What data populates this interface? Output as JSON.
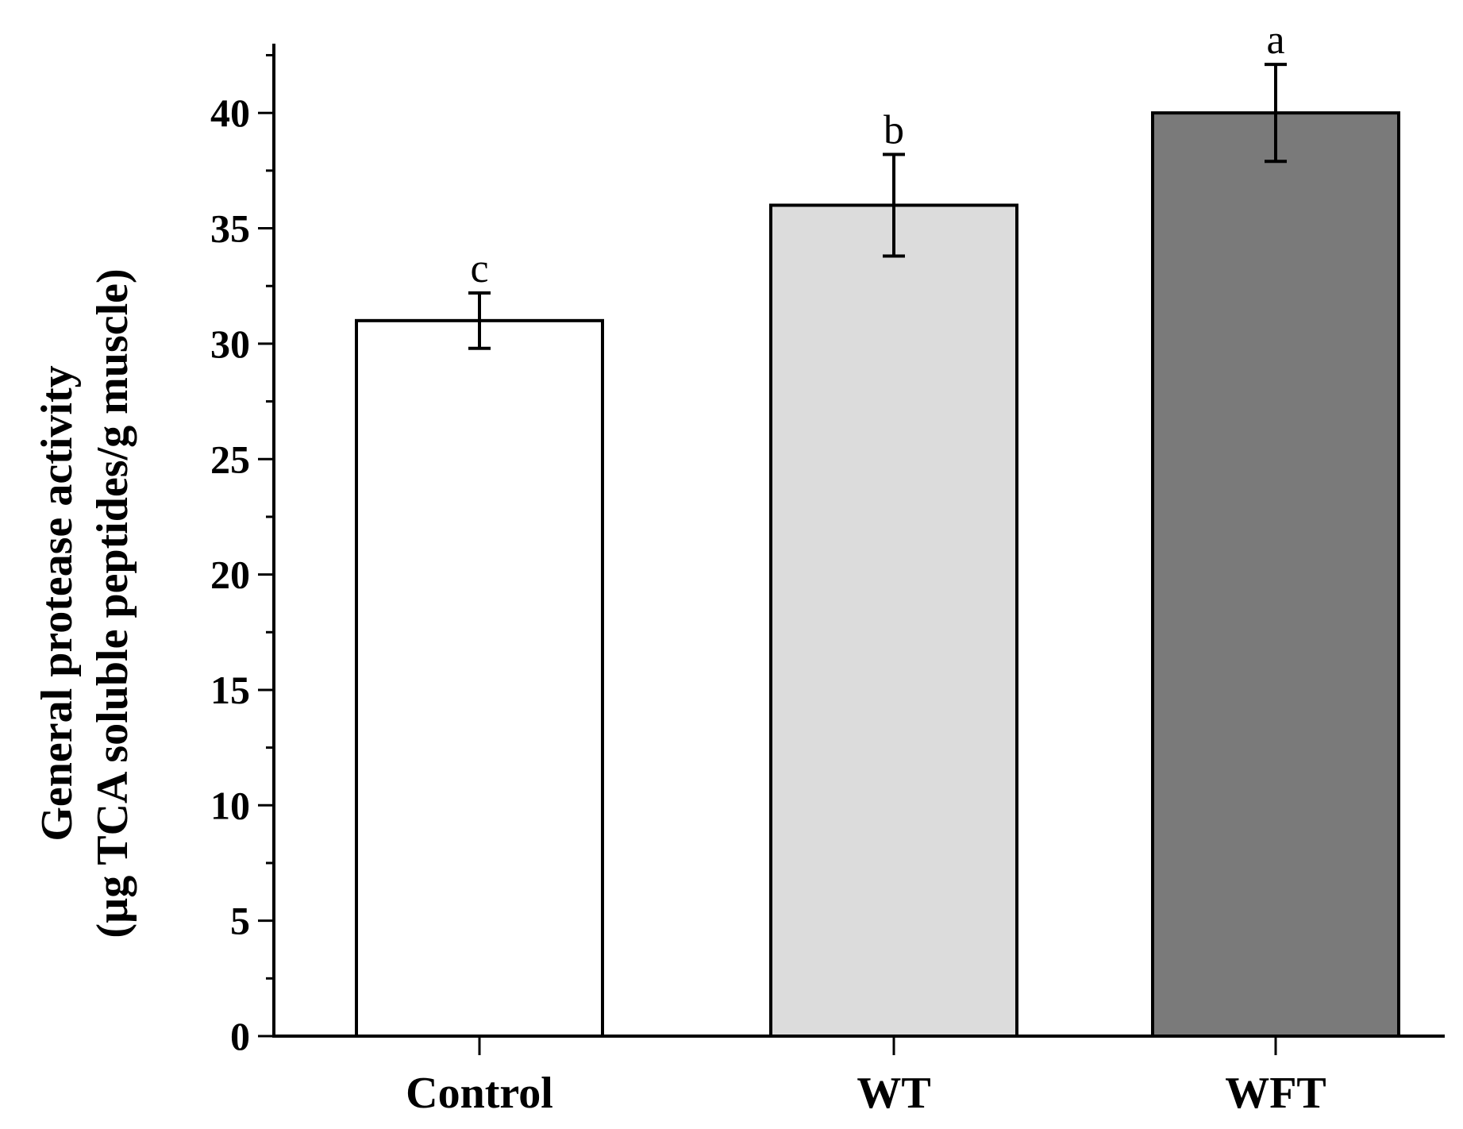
{
  "chart_data": {
    "type": "bar",
    "title": "",
    "xlabel": "",
    "ylabel_line1": "General protease activity",
    "ylabel_line2": "(µg TCA soluble peptides/g muscle)",
    "categories": [
      "Control",
      "WT",
      "WFT"
    ],
    "values": [
      31.0,
      36.0,
      40.0
    ],
    "errors": [
      1.2,
      2.2,
      2.1
    ],
    "significance_letters": [
      "c",
      "b",
      "a"
    ],
    "bar_colors": [
      "#ffffff",
      "#dcdcdc",
      "#7a7a7a"
    ],
    "ylim": [
      0,
      43
    ],
    "yticks": [
      0,
      5,
      10,
      15,
      20,
      25,
      30,
      35,
      40
    ],
    "minor_tick_step": 2.5,
    "grid": false
  }
}
